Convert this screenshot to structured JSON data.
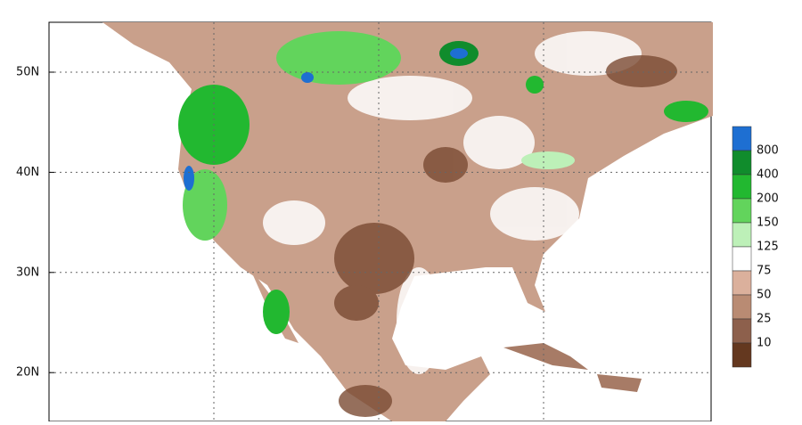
{
  "map": {
    "lat_labels": [
      "50N",
      "40N",
      "30N",
      "20N"
    ],
    "legend": {
      "colors": [
        "#1e6fd2",
        "#108c2c",
        "#22b830",
        "#62d45c",
        "#bdf0b8",
        "#ffffff",
        "#dbb09c",
        "#b98b73",
        "#8d604c",
        "#64381f"
      ],
      "labels": [
        800,
        400,
        200,
        150,
        125,
        75,
        50,
        25,
        10
      ]
    }
  }
}
